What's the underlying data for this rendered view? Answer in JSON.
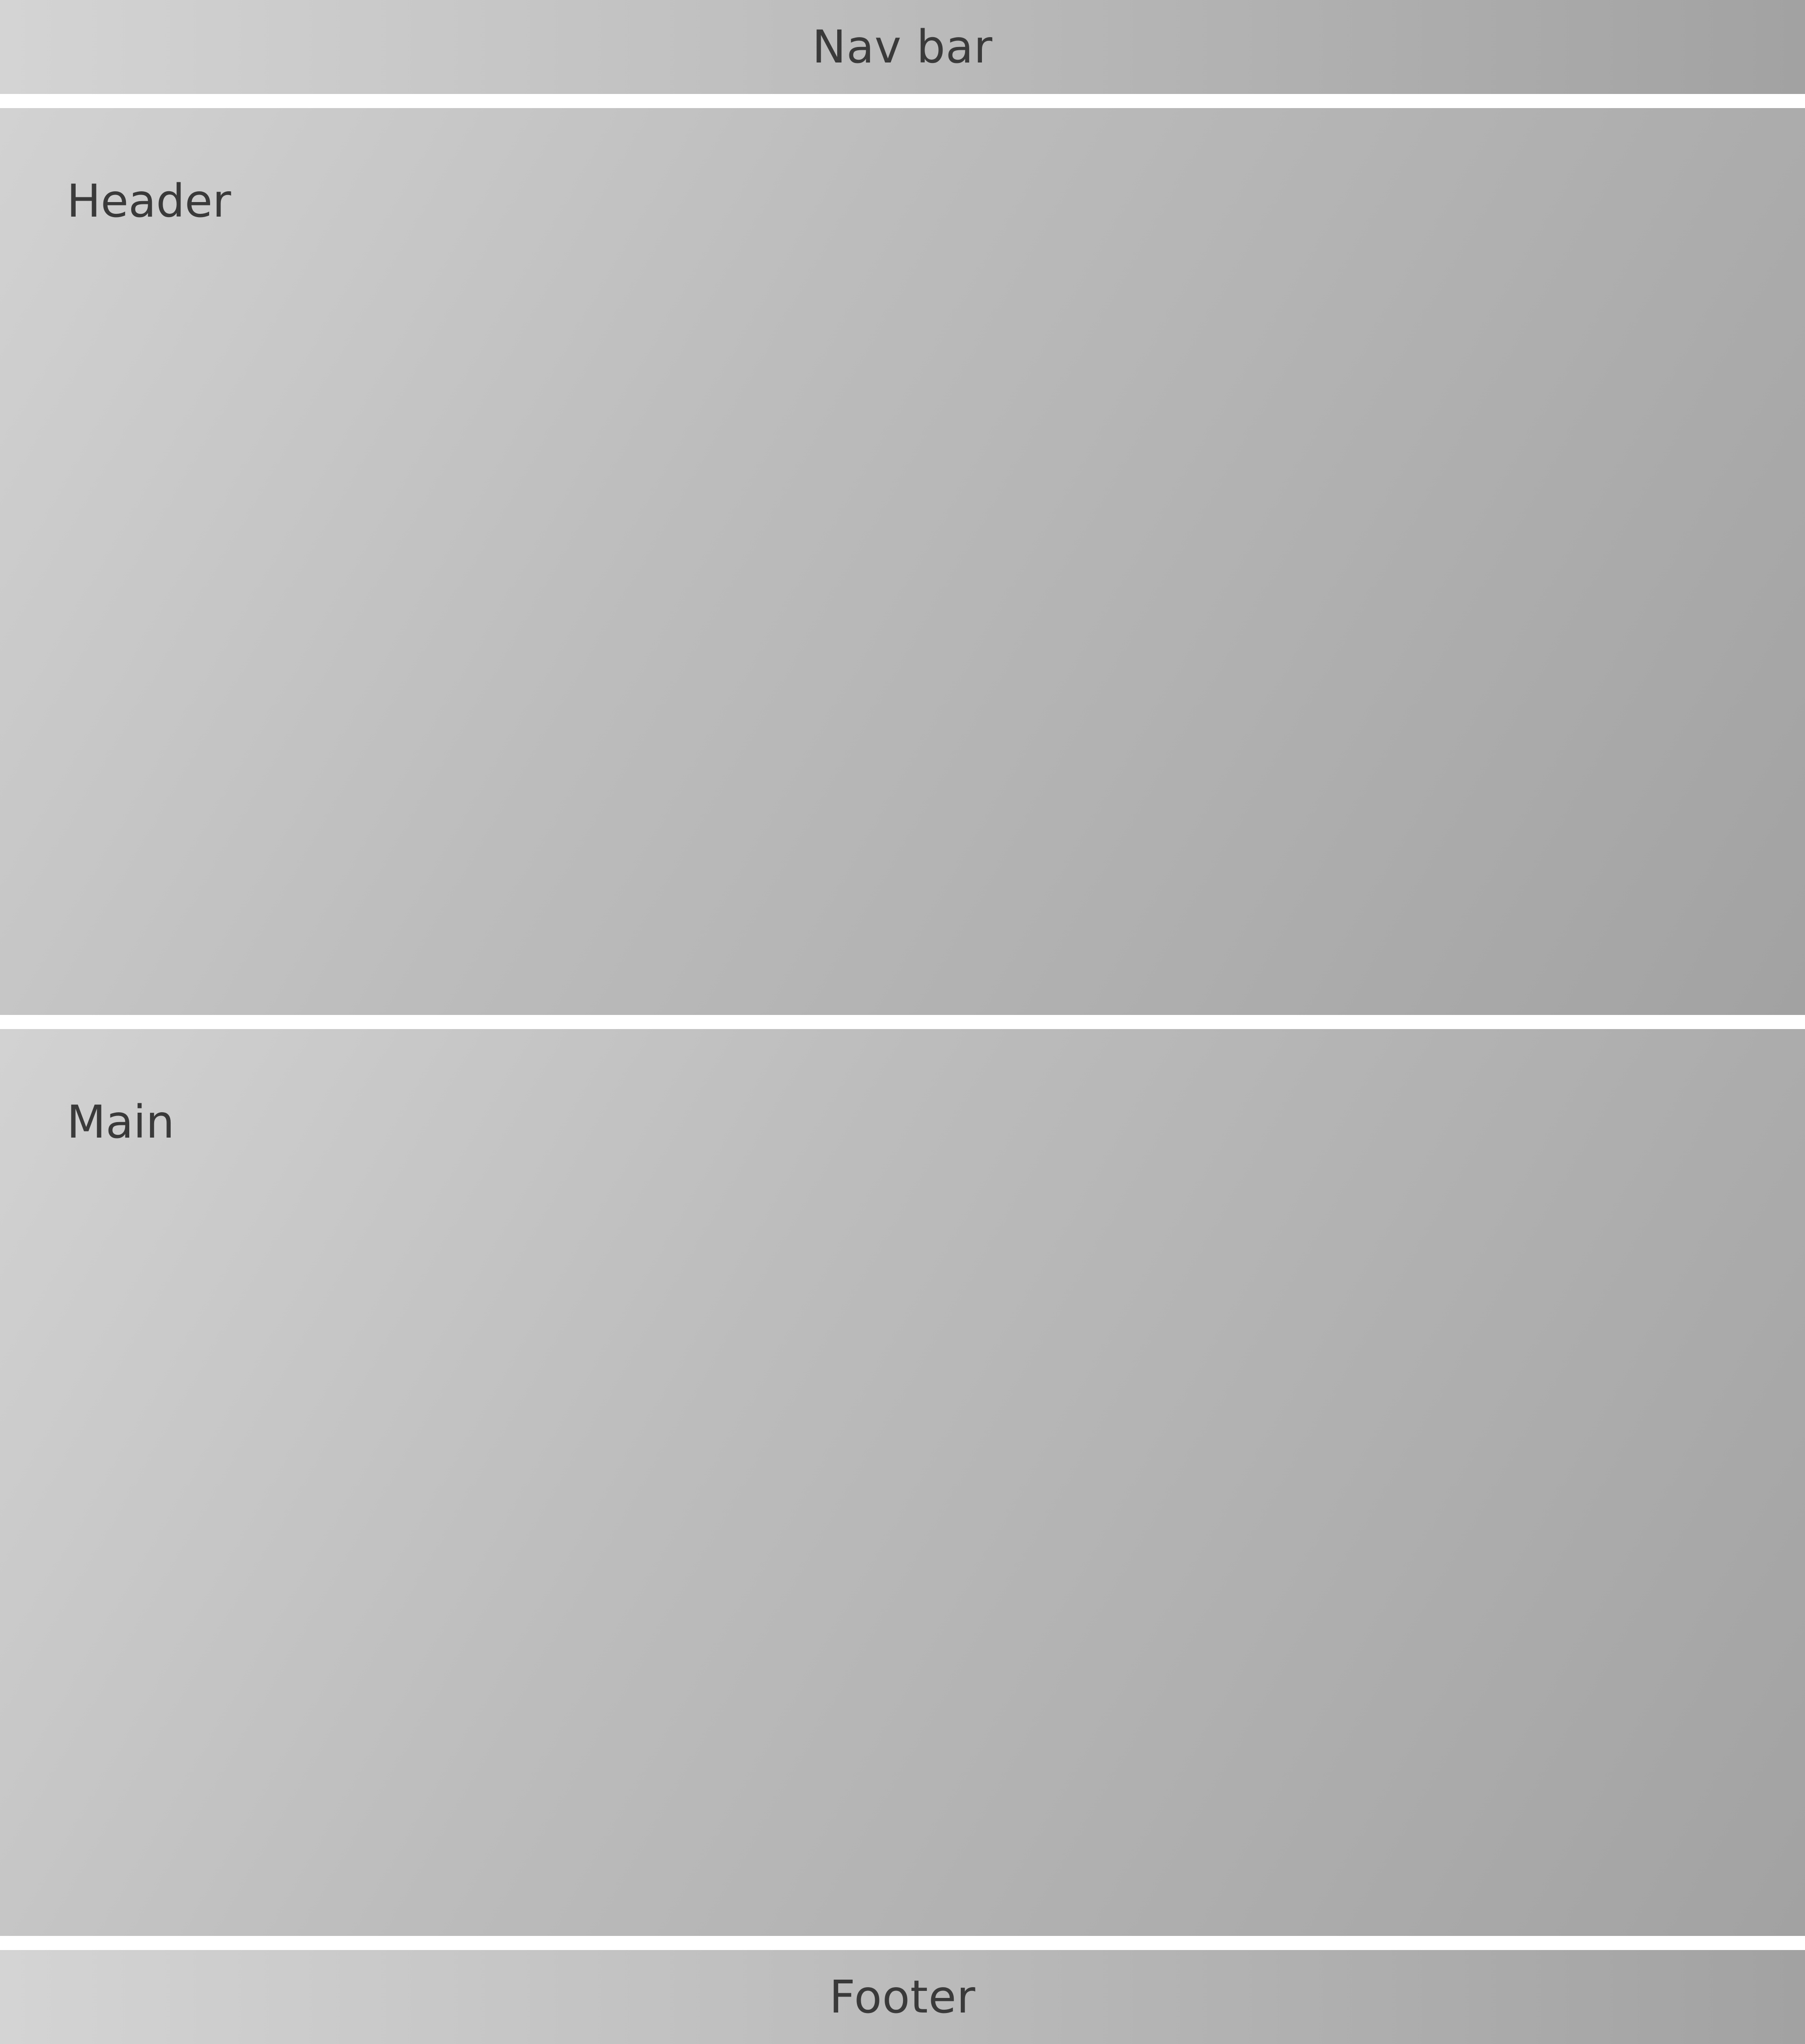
{
  "nav": {
    "label": "Nav bar"
  },
  "header": {
    "label": "Header"
  },
  "main": {
    "label": "Main"
  },
  "footer": {
    "label": "Footer"
  },
  "colors": {
    "gradient_light": "#d4d4d4",
    "gradient_dark": "#a2a2a2",
    "text": "#3a3a3a",
    "background": "#ffffff"
  }
}
